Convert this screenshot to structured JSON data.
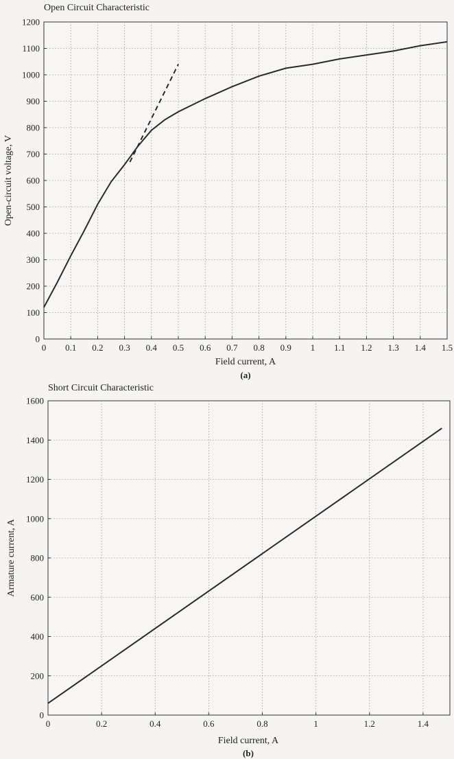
{
  "chart_data": [
    {
      "type": "line",
      "title": "Open Circuit Characteristic",
      "xlabel": "Field current, A",
      "ylabel": "Open-circuit voltage, V",
      "caption": "(a)",
      "xlim": [
        0,
        1.5
      ],
      "ylim": [
        0,
        1200
      ],
      "xticks": [
        0,
        0.1,
        0.2,
        0.3,
        0.4,
        0.5,
        0.6,
        0.7,
        0.8,
        0.9,
        1,
        1.1,
        1.2,
        1.3,
        1.4,
        1.5
      ],
      "xtick_labels": [
        "0",
        "0.1",
        "0.2",
        "0.3",
        "0.4",
        "0.5",
        "0.6",
        "0.7",
        "0.8",
        "0.9",
        "1",
        "1.1",
        "1.2",
        "1.3",
        "1.4",
        "1.5"
      ],
      "yticks": [
        0,
        100,
        200,
        300,
        400,
        500,
        600,
        700,
        800,
        900,
        1000,
        1100,
        1200
      ],
      "ytick_labels": [
        "0",
        "100",
        "200",
        "300",
        "400",
        "500",
        "600",
        "700",
        "800",
        "900",
        "1000",
        "1100",
        "1200"
      ],
      "grid": true,
      "series": [
        {
          "style": "solid",
          "x": [
            0,
            0.05,
            0.1,
            0.15,
            0.2,
            0.25,
            0.3,
            0.35,
            0.4,
            0.45,
            0.5,
            0.55,
            0.6,
            0.7,
            0.8,
            0.9,
            1.0,
            1.1,
            1.2,
            1.3,
            1.4,
            1.5
          ],
          "y": [
            120,
            215,
            315,
            410,
            510,
            595,
            660,
            730,
            790,
            830,
            860,
            885,
            910,
            955,
            995,
            1025,
            1040,
            1060,
            1075,
            1090,
            1110,
            1125
          ]
        },
        {
          "style": "dashed",
          "x": [
            0.32,
            0.5
          ],
          "y": [
            670,
            1040
          ]
        }
      ]
    },
    {
      "type": "line",
      "title": "Short Circuit Characteristic",
      "xlabel": "Field current, A",
      "ylabel": "Armature current, A",
      "caption": "(b)",
      "xlim": [
        0,
        1.5
      ],
      "ylim": [
        0,
        1600
      ],
      "xticks": [
        0,
        0.2,
        0.4,
        0.6,
        0.8,
        1,
        1.2,
        1.4
      ],
      "xtick_labels": [
        "0",
        "0.2",
        "0.4",
        "0.6",
        "0.8",
        "1",
        "1.2",
        "1.4"
      ],
      "yticks": [
        0,
        200,
        400,
        600,
        800,
        1000,
        1200,
        1400,
        1600
      ],
      "ytick_labels": [
        "0",
        "200",
        "400",
        "600",
        "800",
        "1000",
        "1200",
        "1400",
        "1600"
      ],
      "grid": true,
      "series": [
        {
          "style": "solid",
          "x": [
            0,
            1.47
          ],
          "y": [
            60,
            1460
          ]
        }
      ]
    }
  ]
}
